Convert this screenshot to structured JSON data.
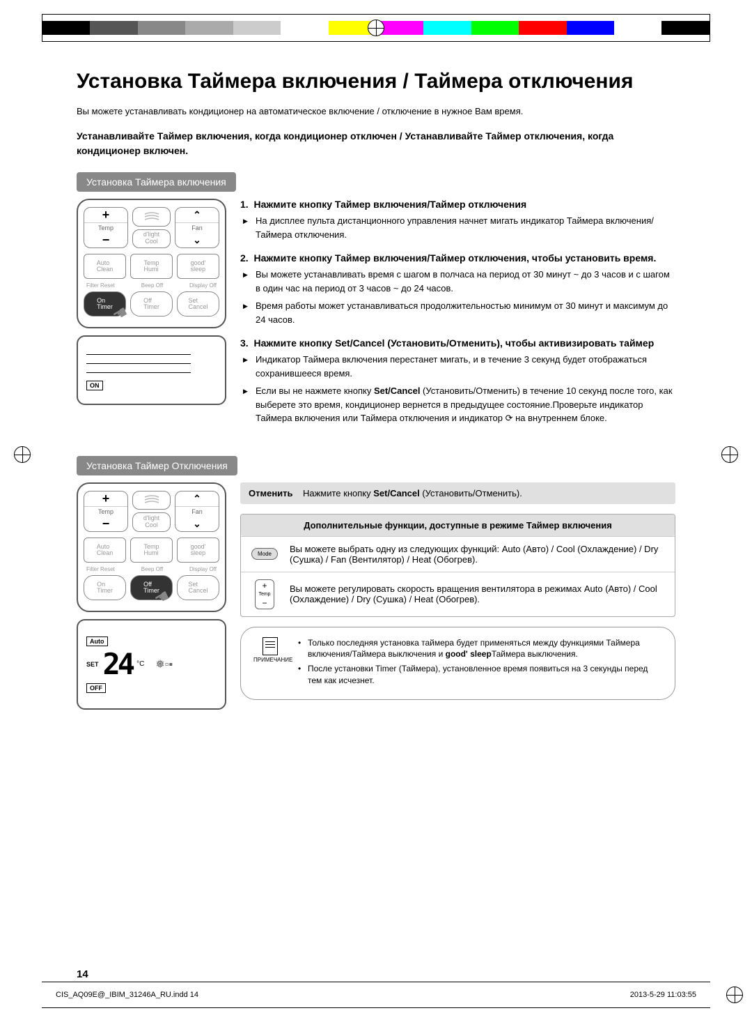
{
  "print": {
    "colors": [
      "#000000",
      "#555555",
      "#888888",
      "#aaaaaa",
      "#cccccc",
      "#ffffff",
      "#ffff00",
      "#ff00ff",
      "#00ffff",
      "#00ff00",
      "#ff0000",
      "#0000ff",
      "#ffffff",
      "#000000"
    ]
  },
  "title": "Установка Таймера включения / Таймера отключения",
  "intro": "Вы можете устанавливать кондиционер на автоматическое включение / отключение в нужное Вам время.",
  "subintro": "Устанавливайте Таймер включения, когда кондиционер отключен / Устанавливайте Таймер отключения, когда кондиционер включен.",
  "sections": {
    "on": {
      "label": "Установка Таймера включения"
    },
    "off": {
      "label": "Установка Таймер Отключения"
    }
  },
  "remote": {
    "temp_label": "Temp",
    "fan_label": "Fan",
    "dlight": "d'light\nCool",
    "auto_clean": "Auto\nClean",
    "temp_humi": "Temp\nHumi",
    "good_sleep": "good'\nsleep",
    "filter_reset": "Filter Reset",
    "beep_off": "Beep Off",
    "display_off": "Display Off",
    "on_timer": "On\nTimer",
    "off_timer": "Off\nTimer",
    "set_cancel": "Set\nCancel"
  },
  "display1": {
    "badge": "ON"
  },
  "display2": {
    "auto": "Auto",
    "set": "SET",
    "temp": "24",
    "unit": "°C",
    "off": "OFF"
  },
  "steps": [
    {
      "num": "1.",
      "title": "Нажмите кнопку Таймер включения/Таймер отключения",
      "items": [
        "На дисплее пульта дистанционного управления начнет мигать индикатор Таймера включения/Таймера отключения."
      ]
    },
    {
      "num": "2.",
      "title": "Нажмите кнопку Таймер включения/Таймер отключения, чтобы установить время.",
      "items": [
        "Вы можете устанавливать время с шагом в полчаса на период от 30 минут ~ до 3 часов и с шагом в один час на период от 3 часов ~ до 24 часов.",
        "Время работы может устанавливаться продолжительностью минимум от 30 минут и максимум до 24 часов."
      ]
    },
    {
      "num": "3.",
      "title_html": "Нажмите кнопку Set/Cancel (Установить/Отменить), чтобы активизировать таймер",
      "items": [
        "Индикатор Таймера включения перестанет мигать, и в течение 3 секунд будет отображаться сохранившееся время.",
        "Если вы не нажмете кнопку Set/Cancel (Установить/Отменить) в течение 10 секунд после того, как выберете это время, кондиционер вернется в предыдущее состояние.Проверьте индикатор Таймера включения или Таймера отключения и индикатор ⟳ на внутреннем блоке."
      ]
    }
  ],
  "cancel": {
    "label": "Отменить",
    "text_prefix": "Нажмите кнопку ",
    "text_bold": "Set/Cancel",
    "text_suffix": " (Установить/Отменить)."
  },
  "func": {
    "header": "Дополнительные функции, доступные в режиме Таймер включения",
    "row1_icon": "Mode",
    "row1": "Вы можете выбрать одну из следующих функций: Auto (Авто) / Cool (Охлаждение) / Dry (Сушка) / Fan (Вентилятор) / Heat (Обогрев).",
    "row2_icon": "Temp",
    "row2": "Вы можете регулировать скорость вращения вентилятора в режимах Auto (Авто) / Cool (Охлаждение) / Dry (Сушка) / Heat (Обогрев)."
  },
  "note": {
    "label": "ПРИМЕЧАНИЕ",
    "items_html": [
      "Только последняя установка таймера будет применяться между функциями Таймера включения/Таймера выключения и <b>good' sleep</b>Таймера выключения.",
      "После установки Timer (Таймера), установленное время появиться на 3 секунды перед тем как исчезнет."
    ]
  },
  "page_num": "14",
  "footer": {
    "file": "CIS_AQ09E@_IBIM_31246A_RU.indd   14",
    "date": "2013-5-29   11:03:55"
  }
}
